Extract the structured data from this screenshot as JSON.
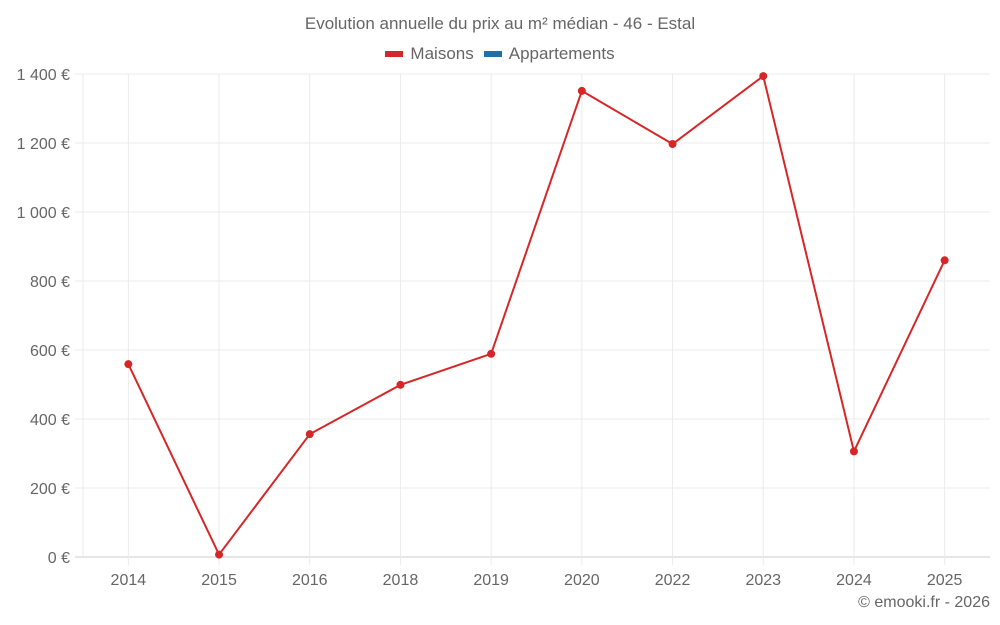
{
  "chart_data": {
    "type": "line",
    "title": "Evolution annuelle du prix au m² médian - 46 - Estal",
    "xlabel": "",
    "ylabel": "",
    "categories": [
      "2014",
      "2015",
      "2016",
      "2018",
      "2019",
      "2020",
      "2022",
      "2023",
      "2024",
      "2025"
    ],
    "series": [
      {
        "name": "Maisons",
        "color": "#d62728",
        "values": [
          559,
          7,
          356,
          499,
          589,
          1351,
          1197,
          1394,
          306,
          860
        ]
      },
      {
        "name": "Appartements",
        "color": "#1f6fa8",
        "values": []
      }
    ],
    "ylim": [
      0,
      1400
    ],
    "yticks": [
      0,
      200,
      400,
      600,
      800,
      1000,
      1200,
      1400
    ],
    "ytick_labels": [
      "0 €",
      "200 €",
      "400 €",
      "600 €",
      "800 €",
      "1 000 €",
      "1 200 €",
      "1 400 €"
    ],
    "grid": true,
    "legend_position": "top"
  },
  "legend": [
    {
      "label": "Maisons",
      "color": "#d62728"
    },
    {
      "label": "Appartements",
      "color": "#1f6fa8"
    }
  ],
  "credit": "© emooki.fr - 2026"
}
